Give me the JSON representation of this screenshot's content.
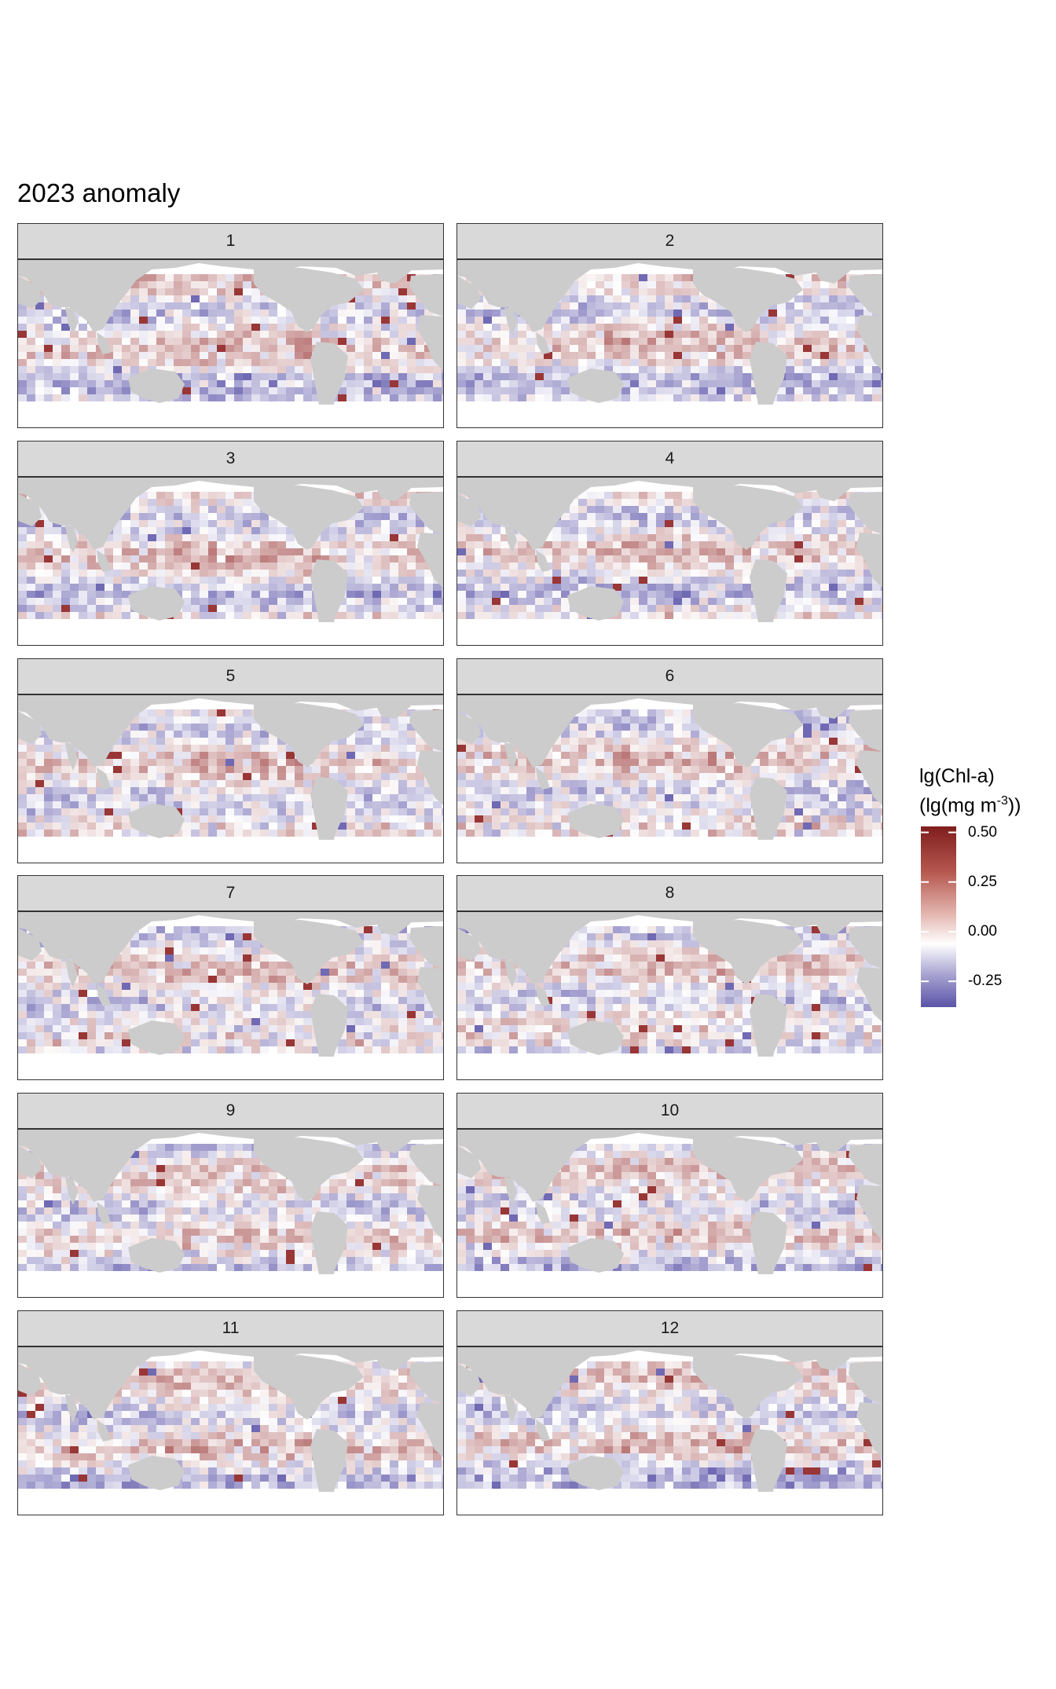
{
  "title": "2023 anomaly",
  "legend": {
    "title_line1": "lg(Chl-a)",
    "title_line2_prefix": "(lg(mg m",
    "title_line2_sup": "-3",
    "title_line2_suffix": "))",
    "ticks": [
      {
        "value": 0.5,
        "label": "0.50"
      },
      {
        "value": 0.25,
        "label": "0.25"
      },
      {
        "value": 0.0,
        "label": "0.00"
      },
      {
        "value": -0.25,
        "label": "-0.25"
      }
    ]
  },
  "chart_data": {
    "type": "heatmap",
    "title": "2023 anomaly",
    "panels": [
      "1",
      "2",
      "3",
      "4",
      "5",
      "6",
      "7",
      "8",
      "9",
      "10",
      "11",
      "12"
    ],
    "colorscale": {
      "low": "#5b53a8",
      "mid": "#ffffff",
      "high": "#8b1a1a",
      "limits": [
        -0.38,
        0.53
      ]
    },
    "land_color": "#cccccc"
  }
}
